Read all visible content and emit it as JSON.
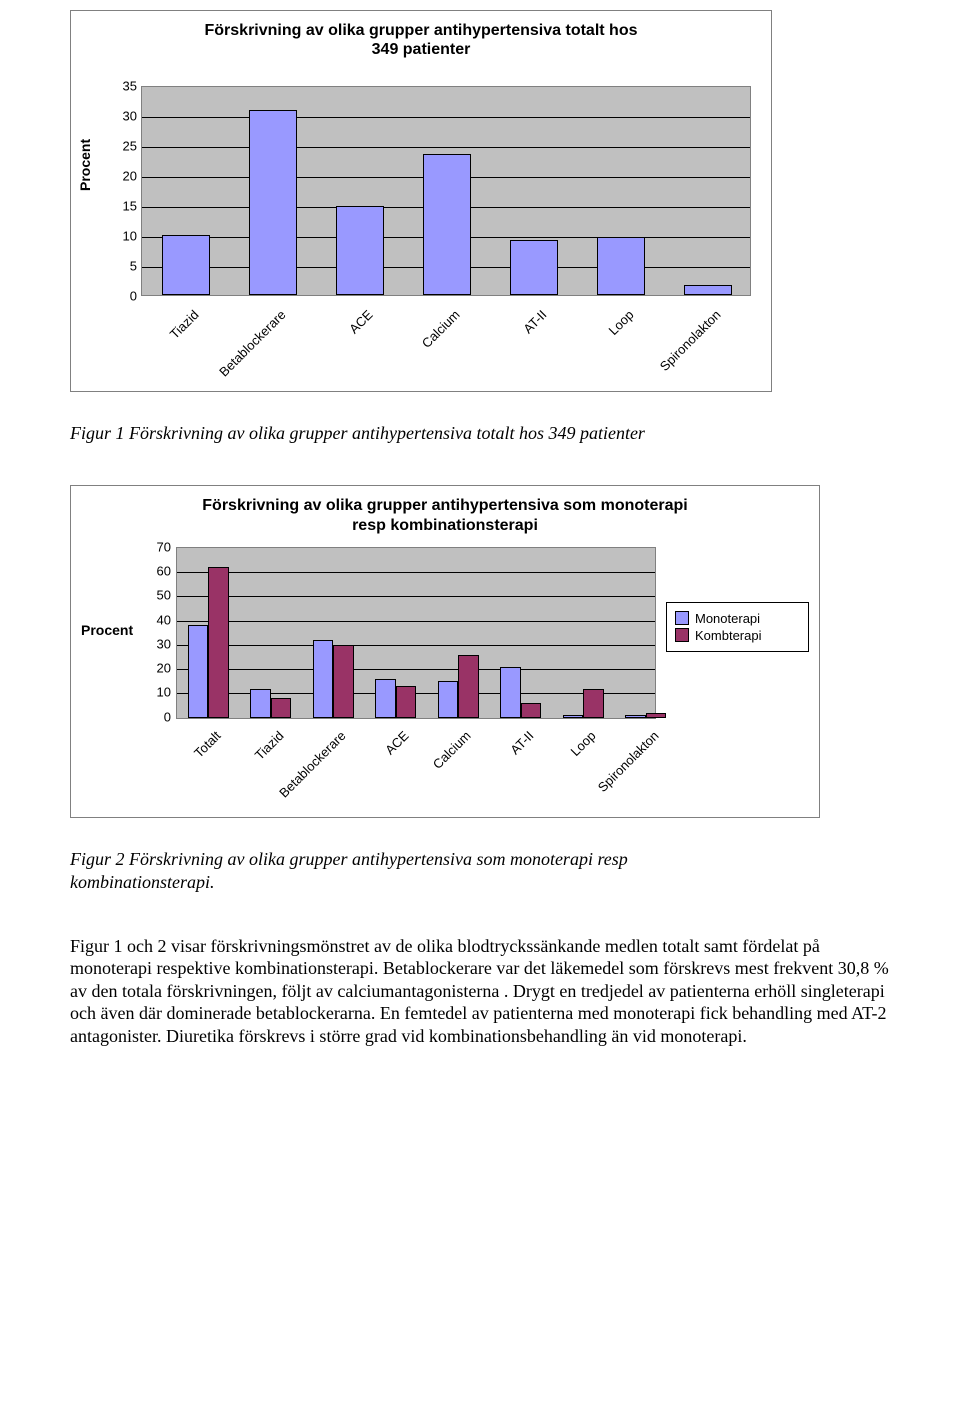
{
  "chart1": {
    "type": "bar",
    "title_line1": "Förskrivning av olika grupper antihypertensiva totalt hos",
    "title_line2": "349 patienter",
    "ylabel": "Procent",
    "ymin": 0,
    "ymax": 35,
    "ytick_step": 5,
    "background_color": "#ffffff",
    "plot_background": "#c0c0c0",
    "grid_color": "#000000",
    "border_color": "#808080",
    "bar_color": "#9999ff",
    "bar_border": "#000000",
    "label_fontsize": 13,
    "title_fontsize": 16,
    "categories": [
      "Tiazid",
      "Betablockerare",
      "ACE",
      "Calcium",
      "AT-II",
      "Loop",
      "Spironolakton"
    ],
    "values": [
      10,
      30.8,
      14.8,
      23.5,
      9.2,
      9.7,
      1.7
    ]
  },
  "caption1": "Figur 1 Förskrivning av olika grupper antihypertensiva totalt hos 349 patienter",
  "chart2": {
    "type": "grouped-bar",
    "title_line1": "Förskrivning av olika grupper antihypertensiva som monoterapi",
    "title_line2": "resp kombinationsterapi",
    "ylabel": "Procent",
    "ymin": 0,
    "ymax": 70,
    "ytick_step": 10,
    "background_color": "#ffffff",
    "plot_background": "#c0c0c0",
    "grid_color": "#000000",
    "border_color": "#808080",
    "label_fontsize": 13,
    "title_fontsize": 16,
    "series": [
      {
        "name": "Monoterapi",
        "color": "#9999ff",
        "values": [
          38,
          12,
          32,
          16,
          15,
          21,
          1,
          1
        ]
      },
      {
        "name": "Kombterapi",
        "color": "#993366",
        "values": [
          62,
          8,
          30,
          13,
          26,
          6,
          12,
          2
        ]
      }
    ],
    "categories": [
      "Totalt",
      "Tiazid",
      "Betablockerare",
      "ACE",
      "Calcium",
      "AT-II",
      "Loop",
      "Spironolakton"
    ]
  },
  "caption2_line1": "Figur 2 Förskrivning av olika grupper antihypertensiva som monoterapi resp",
  "caption2_line2": "kombinationsterapi.",
  "paragraph": "Figur 1 och 2 visar förskrivningsmönstret av de olika blodtryckssänkande medlen totalt samt fördelat på monoterapi respektive kombinationsterapi. Betablockerare var det läkemedel som förskrevs mest frekvent 30,8 % av den totala förskrivningen, följt av calciumantagonisterna . Drygt en tredjedel av patienterna  erhöll singleterapi och även där dominerade betablockerarna. En femtedel av patienterna med monoterapi fick behandling med AT-2 antagonister. Diuretika förskrevs i större grad vid kombinationsbehandling än vid monoterapi."
}
